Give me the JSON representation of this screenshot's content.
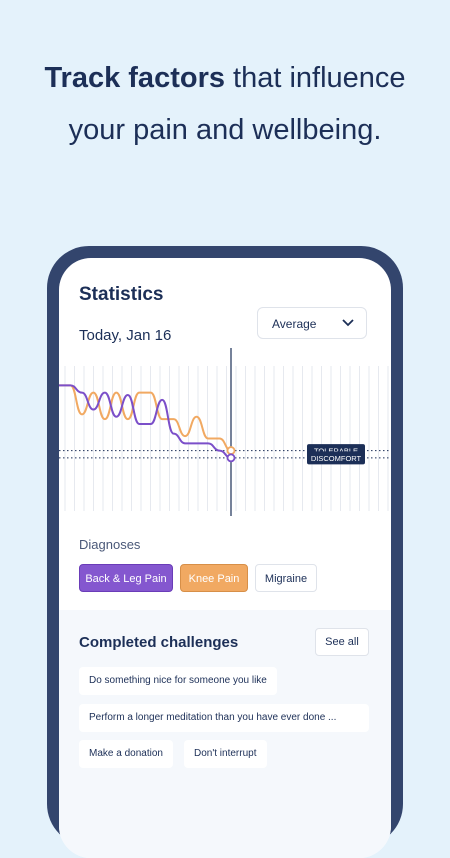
{
  "headline": {
    "bold": "Track factors",
    "rest_line1": " that influence",
    "line2": "your pain and wellbeing."
  },
  "statistics": {
    "title": "Statistics",
    "date": "Today, Jan 16",
    "dropdown_value": "Average"
  },
  "chart_data": {
    "type": "line",
    "series": [
      {
        "color": "#f1a962",
        "values": [
          5.2,
          5.2,
          4.0,
          4.9,
          3.8,
          4.9,
          3.8,
          4.9,
          4.9,
          3.8,
          3.8,
          3.1,
          3.9,
          3.0,
          3.0,
          2.5
        ]
      },
      {
        "color": "#7b4fc9",
        "values": [
          5.2,
          5.2,
          4.9,
          4.2,
          4.9,
          3.9,
          4.8,
          3.6,
          3.6,
          4.6,
          3.2,
          2.8,
          2.8,
          2.8,
          2.5,
          2.2
        ]
      }
    ],
    "reference_lines": [
      {
        "label": "TOLERABLE",
        "value": 2.5
      },
      {
        "label": "DISCOMFORT",
        "value": 2.2
      }
    ],
    "ylim": [
      0,
      6
    ]
  },
  "diagnoses": {
    "label": "Diagnoses",
    "chips": [
      "Back & Leg Pain",
      "Knee Pain",
      "Migraine"
    ]
  },
  "challenges": {
    "title": "Completed challenges",
    "see_all": "See all",
    "items": [
      "Do something nice for someone you like",
      "Perform a longer meditation than you have ever done ...",
      "Make a donation",
      "Don't interrupt"
    ]
  }
}
